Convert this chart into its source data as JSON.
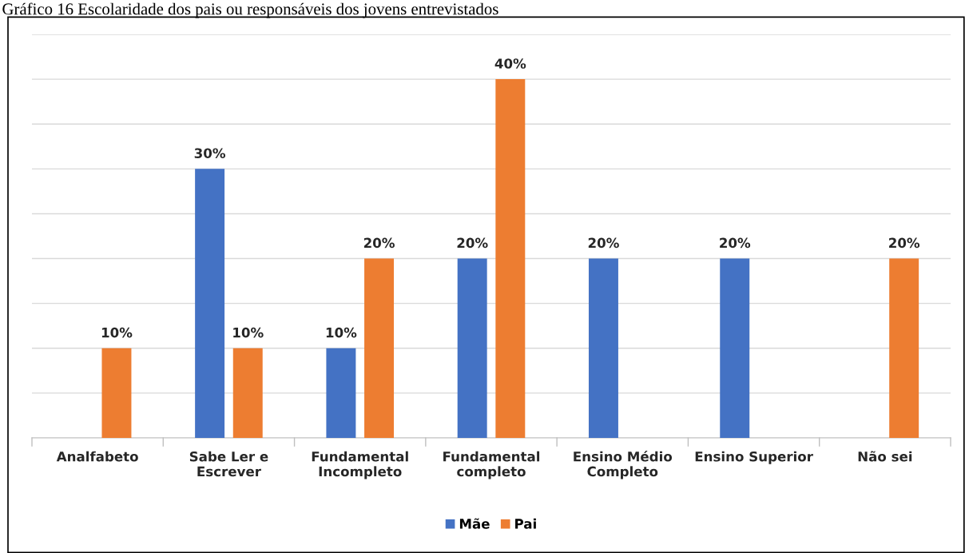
{
  "chart_data": {
    "type": "bar",
    "title": "Gráfico 16 Escolaridade dos pais ou responsáveis dos jovens entrevistados",
    "categories": [
      "Analfabeto",
      "Sabe Ler e\nEscrever",
      "Fundamental\nIncompleto",
      "Fundamental\ncompleto",
      "Ensino Médio\nCompleto",
      "Ensino Superior",
      "Não sei"
    ],
    "series": [
      {
        "name": "Mãe",
        "color": "#4472c4",
        "values": [
          null,
          30,
          10,
          20,
          20,
          20,
          null
        ],
        "value_labels": [
          null,
          "30%",
          "10%",
          "20%",
          "20%",
          "20%",
          null
        ]
      },
      {
        "name": "Pai",
        "color": "#ed7d31",
        "values": [
          10,
          10,
          20,
          40,
          null,
          null,
          20
        ],
        "value_labels": [
          "10%",
          "10%",
          "20%",
          "40%",
          null,
          null,
          "20%"
        ]
      }
    ],
    "ylim": [
      0,
      45
    ],
    "yticks": [
      {
        "value": 0,
        "label": null
      },
      {
        "value": 5,
        "label": null
      },
      {
        "value": 10,
        "label": null
      },
      {
        "value": 15,
        "label": null
      },
      {
        "value": 20,
        "label": null
      },
      {
        "value": 25,
        "label": null
      },
      {
        "value": 30,
        "label": null
      },
      {
        "value": 35,
        "label": null
      },
      {
        "value": 40,
        "label": null
      },
      {
        "value": 45,
        "label": null
      }
    ],
    "tick_labels": "x",
    "grid": "y",
    "legend": "bottom"
  }
}
